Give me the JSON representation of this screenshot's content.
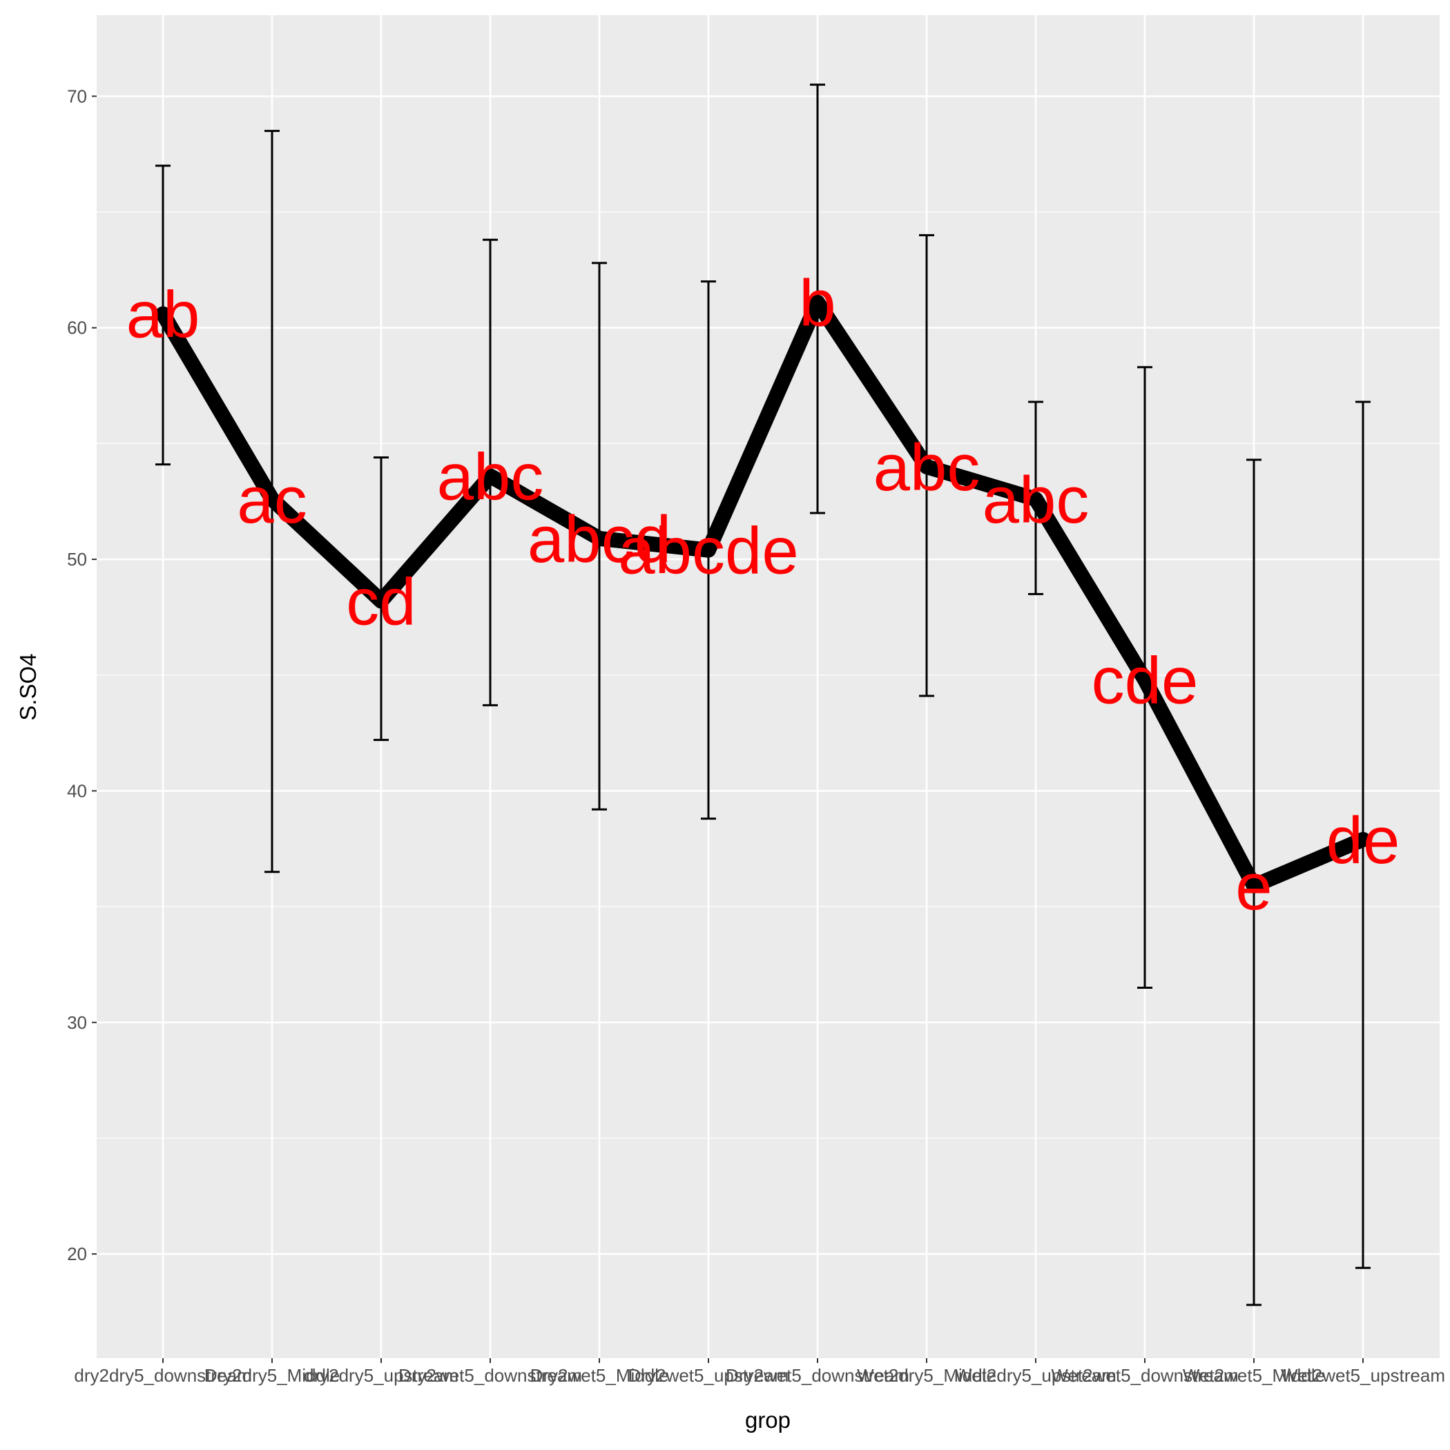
{
  "chart_data": {
    "type": "line",
    "xlabel": "grop",
    "ylabel": "S.SO4",
    "ylim": [
      15.5,
      73.5
    ],
    "yticks": [
      20,
      30,
      40,
      50,
      60,
      70
    ],
    "grid": true,
    "categories": [
      "dry2dry5_downstream",
      "Dry2dry5_Middle",
      "dry2dry5_upstream",
      "Dry2wet5_downstream",
      "Dry2wet5_Middle",
      "Dry2wet5_upstream",
      "Dry2wet5_downstream",
      "Wet2dry5_Middle",
      "Wet2dry5_upstream",
      "Wet2wet5_downstream",
      "Wet2wet5_Middle",
      "Wet2wet5_upstream"
    ],
    "tick_labels_note": "",
    "series": [
      {
        "values": [
          60.6,
          52.6,
          48.2,
          53.6,
          50.9,
          50.4,
          61.1,
          54.0,
          52.6,
          44.8,
          35.9,
          37.9
        ],
        "error_low": [
          54.1,
          36.5,
          42.2,
          43.7,
          39.2,
          38.8,
          52.0,
          44.1,
          48.5,
          31.5,
          17.8,
          19.4
        ],
        "error_high": [
          67.0,
          68.5,
          54.4,
          63.8,
          62.8,
          62.0,
          70.5,
          64.0,
          56.8,
          58.3,
          54.3,
          56.8
        ],
        "labels": [
          "ab",
          "ac",
          "cd",
          "abc",
          "abcd",
          "abcde",
          "b",
          "abc",
          "abc",
          "cde",
          "e",
          "de"
        ]
      }
    ],
    "colors": {
      "panel": "#ebebeb",
      "grid": "#ffffff",
      "line": "#000000",
      "errorbar": "#000000",
      "label": "#ff0000"
    }
  }
}
